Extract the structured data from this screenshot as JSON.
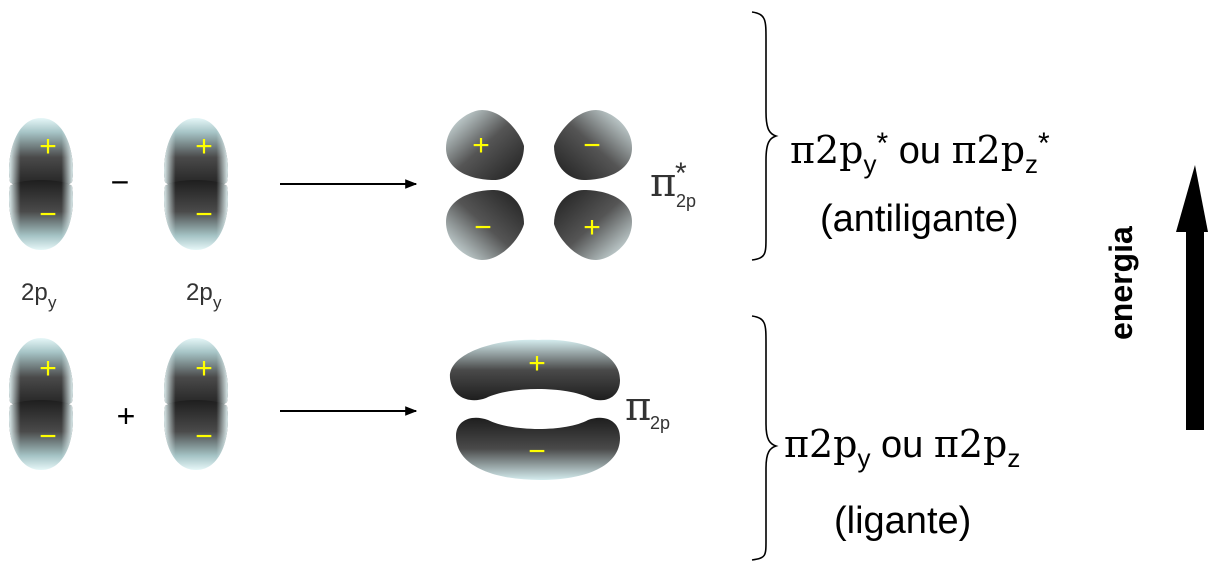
{
  "colors": {
    "lobe_dark": "#2b2b2b",
    "lobe_light": "#dff3f5",
    "sign_color": "#ffff00",
    "text": "#000000",
    "sub_label_color": "#333333"
  },
  "antibonding": {
    "operator": "−",
    "orbital1_label": "2p",
    "orbital1_sub": "y",
    "orbital2_label": "2p",
    "orbital2_sub": "y",
    "result_symbol": "π",
    "result_superscript": "*",
    "result_subscript": "2p",
    "signs": {
      "left_top": "+",
      "left_bottom": "−",
      "right_top": "+",
      "right_bottom": "−",
      "res_tl": "+",
      "res_tr": "−",
      "res_bl": "−",
      "res_br": "+"
    },
    "bracket_label_part1": "π2p",
    "bracket_label_sub1": "y",
    "bracket_label_star1": "*",
    "bracket_label_mid": " ou ",
    "bracket_label_part2": "π2p",
    "bracket_label_sub2": "z",
    "bracket_label_star2": "*",
    "bracket_caption": "(antiligante)"
  },
  "bonding": {
    "operator": "+",
    "result_symbol": "π",
    "result_subscript": "2p",
    "signs": {
      "left_top": "+",
      "left_bottom": "−",
      "right_top": "+",
      "right_bottom": "−",
      "res_top": "+",
      "res_bottom": "−"
    },
    "bracket_label_part1": "π2p",
    "bracket_label_sub1": "y",
    "bracket_label_mid": " ou ",
    "bracket_label_part2": "π2p",
    "bracket_label_sub2": "z",
    "bracket_caption": "(ligante)"
  },
  "energy_axis": {
    "label": "energia",
    "arrow_icon": "up-arrow-icon"
  }
}
